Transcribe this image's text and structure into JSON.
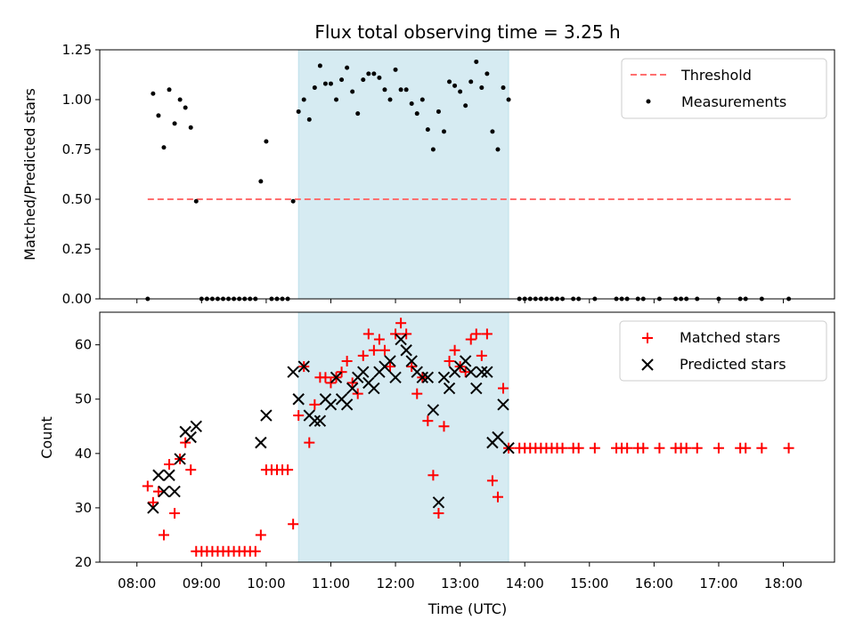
{
  "chart_data": {
    "type": "scatter",
    "title": "Flux total observing time = 3.25 h",
    "shaded_region": {
      "start": "10:30",
      "end": "13:45",
      "color": "#add8e6"
    },
    "top": {
      "ylabel": "Matched/Predicted stars",
      "ylim": [
        0,
        1.25
      ],
      "yticks": [
        "0.00",
        "0.25",
        "0.50",
        "0.75",
        "1.00",
        "1.25"
      ],
      "legend": {
        "position": "upper right",
        "entries": [
          "Threshold",
          "Measurements"
        ]
      },
      "threshold": {
        "name": "Threshold",
        "value": 0.5,
        "x_start": "08:10",
        "x_end": "18:10",
        "color": "#ff6f6f"
      },
      "measurements": {
        "name": "Measurements",
        "color": "#000000",
        "points": [
          [
            "08:10",
            0.0
          ],
          [
            "08:15",
            1.03
          ],
          [
            "08:20",
            0.92
          ],
          [
            "08:25",
            0.76
          ],
          [
            "08:30",
            1.05
          ],
          [
            "08:35",
            0.88
          ],
          [
            "08:40",
            1.0
          ],
          [
            "08:45",
            0.96
          ],
          [
            "08:50",
            0.86
          ],
          [
            "08:55",
            0.49
          ],
          [
            "09:00",
            0.0
          ],
          [
            "09:05",
            0.0
          ],
          [
            "09:10",
            0.0
          ],
          [
            "09:15",
            0.0
          ],
          [
            "09:20",
            0.0
          ],
          [
            "09:25",
            0.0
          ],
          [
            "09:30",
            0.0
          ],
          [
            "09:35",
            0.0
          ],
          [
            "09:40",
            0.0
          ],
          [
            "09:45",
            0.0
          ],
          [
            "09:50",
            0.0
          ],
          [
            "09:55",
            0.59
          ],
          [
            "10:00",
            0.79
          ],
          [
            "10:05",
            0.0
          ],
          [
            "10:10",
            0.0
          ],
          [
            "10:15",
            0.0
          ],
          [
            "10:20",
            0.0
          ],
          [
            "10:25",
            0.49
          ],
          [
            "10:30",
            0.94
          ],
          [
            "10:35",
            1.0
          ],
          [
            "10:40",
            0.9
          ],
          [
            "10:45",
            1.06
          ],
          [
            "10:50",
            1.17
          ],
          [
            "10:55",
            1.08
          ],
          [
            "11:00",
            1.08
          ],
          [
            "11:05",
            1.0
          ],
          [
            "11:10",
            1.1
          ],
          [
            "11:15",
            1.16
          ],
          [
            "11:20",
            1.04
          ],
          [
            "11:25",
            0.93
          ],
          [
            "11:30",
            1.1
          ],
          [
            "11:35",
            1.13
          ],
          [
            "11:40",
            1.13
          ],
          [
            "11:45",
            1.11
          ],
          [
            "11:50",
            1.05
          ],
          [
            "11:55",
            1.0
          ],
          [
            "12:00",
            1.15
          ],
          [
            "12:05",
            1.05
          ],
          [
            "12:10",
            1.05
          ],
          [
            "12:15",
            0.98
          ],
          [
            "12:20",
            0.93
          ],
          [
            "12:25",
            1.0
          ],
          [
            "12:30",
            0.85
          ],
          [
            "12:35",
            0.75
          ],
          [
            "12:40",
            0.94
          ],
          [
            "12:45",
            0.84
          ],
          [
            "12:50",
            1.09
          ],
          [
            "12:55",
            1.07
          ],
          [
            "13:00",
            1.04
          ],
          [
            "13:05",
            0.97
          ],
          [
            "13:10",
            1.09
          ],
          [
            "13:15",
            1.19
          ],
          [
            "13:20",
            1.06
          ],
          [
            "13:25",
            1.13
          ],
          [
            "13:30",
            0.84
          ],
          [
            "13:35",
            0.75
          ],
          [
            "13:40",
            1.06
          ],
          [
            "13:45",
            1.0
          ],
          [
            "13:55",
            0.0
          ],
          [
            "14:00",
            0.0
          ],
          [
            "14:05",
            0.0
          ],
          [
            "14:10",
            0.0
          ],
          [
            "14:15",
            0.0
          ],
          [
            "14:20",
            0.0
          ],
          [
            "14:25",
            0.0
          ],
          [
            "14:30",
            0.0
          ],
          [
            "14:35",
            0.0
          ],
          [
            "14:45",
            0.0
          ],
          [
            "14:50",
            0.0
          ],
          [
            "15:05",
            0.0
          ],
          [
            "15:25",
            0.0
          ],
          [
            "15:30",
            0.0
          ],
          [
            "15:35",
            0.0
          ],
          [
            "15:45",
            0.0
          ],
          [
            "15:50",
            0.0
          ],
          [
            "16:05",
            0.0
          ],
          [
            "16:20",
            0.0
          ],
          [
            "16:25",
            0.0
          ],
          [
            "16:30",
            0.0
          ],
          [
            "16:40",
            0.0
          ],
          [
            "17:00",
            0.0
          ],
          [
            "17:20",
            0.0
          ],
          [
            "17:25",
            0.0
          ],
          [
            "17:40",
            0.0
          ],
          [
            "18:05",
            0.0
          ]
        ]
      }
    },
    "bottom": {
      "ylabel": "Count",
      "xlabel": "Time (UTC)",
      "ylim": [
        20,
        66
      ],
      "yticks": [
        "20",
        "30",
        "40",
        "50",
        "60"
      ],
      "xticks": [
        "08:00",
        "09:00",
        "10:00",
        "11:00",
        "12:00",
        "13:00",
        "14:00",
        "15:00",
        "16:00",
        "17:00",
        "18:00"
      ],
      "legend": {
        "position": "upper right",
        "entries": [
          "Matched stars",
          "Predicted stars"
        ]
      },
      "matched": {
        "name": "Matched stars",
        "color": "#ff0000",
        "points": [
          [
            "08:10",
            34
          ],
          [
            "08:15",
            31
          ],
          [
            "08:20",
            33
          ],
          [
            "08:25",
            25
          ],
          [
            "08:30",
            38
          ],
          [
            "08:35",
            29
          ],
          [
            "08:40",
            39
          ],
          [
            "08:45",
            42
          ],
          [
            "08:50",
            37
          ],
          [
            "08:55",
            22
          ],
          [
            "09:00",
            22
          ],
          [
            "09:05",
            22
          ],
          [
            "09:10",
            22
          ],
          [
            "09:15",
            22
          ],
          [
            "09:20",
            22
          ],
          [
            "09:25",
            22
          ],
          [
            "09:30",
            22
          ],
          [
            "09:35",
            22
          ],
          [
            "09:40",
            22
          ],
          [
            "09:45",
            22
          ],
          [
            "09:50",
            22
          ],
          [
            "09:55",
            25
          ],
          [
            "10:00",
            37
          ],
          [
            "10:05",
            37
          ],
          [
            "10:10",
            37
          ],
          [
            "10:15",
            37
          ],
          [
            "10:20",
            37
          ],
          [
            "10:25",
            27
          ],
          [
            "10:30",
            47
          ],
          [
            "10:35",
            56
          ],
          [
            "10:40",
            42
          ],
          [
            "10:45",
            49
          ],
          [
            "10:50",
            54
          ],
          [
            "10:55",
            54
          ],
          [
            "11:00",
            53
          ],
          [
            "11:05",
            54
          ],
          [
            "11:10",
            55
          ],
          [
            "11:15",
            57
          ],
          [
            "11:20",
            53
          ],
          [
            "11:25",
            51
          ],
          [
            "11:30",
            58
          ],
          [
            "11:35",
            62
          ],
          [
            "11:40",
            59
          ],
          [
            "11:45",
            61
          ],
          [
            "11:50",
            59
          ],
          [
            "11:55",
            56
          ],
          [
            "12:00",
            62
          ],
          [
            "12:05",
            64
          ],
          [
            "12:10",
            62
          ],
          [
            "12:15",
            56
          ],
          [
            "12:20",
            51
          ],
          [
            "12:25",
            54
          ],
          [
            "12:30",
            46
          ],
          [
            "12:35",
            36
          ],
          [
            "12:40",
            29
          ],
          [
            "12:45",
            45
          ],
          [
            "12:50",
            57
          ],
          [
            "12:55",
            59
          ],
          [
            "13:00",
            56
          ],
          [
            "13:05",
            55
          ],
          [
            "13:10",
            61
          ],
          [
            "13:15",
            62
          ],
          [
            "13:20",
            58
          ],
          [
            "13:25",
            62
          ],
          [
            "13:30",
            35
          ],
          [
            "13:35",
            32
          ],
          [
            "13:40",
            52
          ],
          [
            "13:45",
            41
          ],
          [
            "13:55",
            41
          ],
          [
            "14:00",
            41
          ],
          [
            "14:05",
            41
          ],
          [
            "14:10",
            41
          ],
          [
            "14:15",
            41
          ],
          [
            "14:20",
            41
          ],
          [
            "14:25",
            41
          ],
          [
            "14:30",
            41
          ],
          [
            "14:35",
            41
          ],
          [
            "14:45",
            41
          ],
          [
            "14:50",
            41
          ],
          [
            "15:05",
            41
          ],
          [
            "15:25",
            41
          ],
          [
            "15:30",
            41
          ],
          [
            "15:35",
            41
          ],
          [
            "15:45",
            41
          ],
          [
            "15:50",
            41
          ],
          [
            "16:05",
            41
          ],
          [
            "16:20",
            41
          ],
          [
            "16:25",
            41
          ],
          [
            "16:30",
            41
          ],
          [
            "16:40",
            41
          ],
          [
            "17:00",
            41
          ],
          [
            "17:20",
            41
          ],
          [
            "17:25",
            41
          ],
          [
            "17:40",
            41
          ],
          [
            "18:05",
            41
          ]
        ]
      },
      "predicted": {
        "name": "Predicted stars",
        "color": "#000000",
        "points": [
          [
            "08:15",
            30
          ],
          [
            "08:20",
            36
          ],
          [
            "08:25",
            33
          ],
          [
            "08:30",
            36
          ],
          [
            "08:35",
            33
          ],
          [
            "08:40",
            39
          ],
          [
            "08:45",
            44
          ],
          [
            "08:50",
            43
          ],
          [
            "08:55",
            45
          ],
          [
            "09:55",
            42
          ],
          [
            "10:00",
            47
          ],
          [
            "10:25",
            55
          ],
          [
            "10:30",
            50
          ],
          [
            "10:35",
            56
          ],
          [
            "10:40",
            47
          ],
          [
            "10:45",
            46
          ],
          [
            "10:50",
            46
          ],
          [
            "10:55",
            50
          ],
          [
            "11:00",
            49
          ],
          [
            "11:05",
            54
          ],
          [
            "11:10",
            50
          ],
          [
            "11:15",
            49
          ],
          [
            "11:20",
            52
          ],
          [
            "11:25",
            54
          ],
          [
            "11:30",
            55
          ],
          [
            "11:35",
            53
          ],
          [
            "11:40",
            52
          ],
          [
            "11:45",
            55
          ],
          [
            "11:50",
            56
          ],
          [
            "11:55",
            57
          ],
          [
            "12:00",
            54
          ],
          [
            "12:05",
            61
          ],
          [
            "12:10",
            59
          ],
          [
            "12:15",
            57
          ],
          [
            "12:20",
            55
          ],
          [
            "12:25",
            54
          ],
          [
            "12:30",
            54
          ],
          [
            "12:35",
            48
          ],
          [
            "12:40",
            31
          ],
          [
            "12:45",
            54
          ],
          [
            "12:50",
            52
          ],
          [
            "12:55",
            55
          ],
          [
            "13:00",
            56
          ],
          [
            "13:05",
            57
          ],
          [
            "13:10",
            55
          ],
          [
            "13:15",
            52
          ],
          [
            "13:20",
            55
          ],
          [
            "13:25",
            55
          ],
          [
            "13:30",
            42
          ],
          [
            "13:35",
            43
          ],
          [
            "13:40",
            49
          ],
          [
            "13:45",
            41
          ]
        ]
      }
    }
  }
}
